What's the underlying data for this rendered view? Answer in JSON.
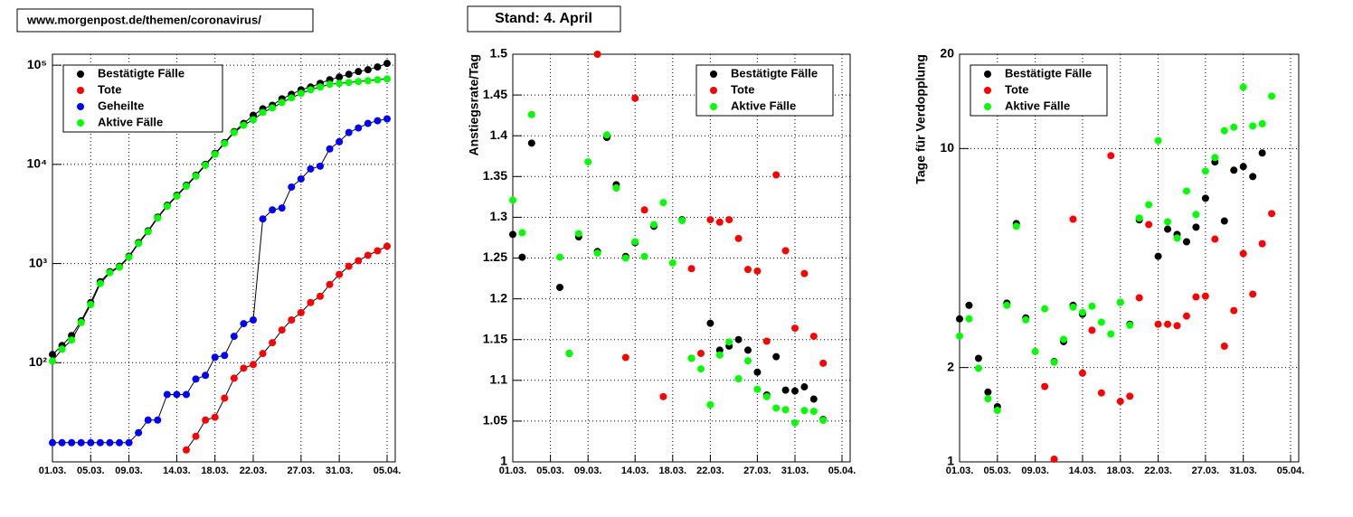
{
  "source": "www.morgenpost.de/themen/coronavirus/",
  "stand": "Stand: 4. April",
  "chart_data": [
    {
      "type": "line",
      "line_color": "#000000",
      "log_y": true,
      "grid": true,
      "legend": "top-left",
      "x": [
        "01.03.",
        "02.03.",
        "03.03.",
        "04.03.",
        "05.03.",
        "06.03.",
        "07.03.",
        "08.03.",
        "09.03.",
        "10.03.",
        "11.03.",
        "12.03.",
        "13.03.",
        "14.03.",
        "15.03.",
        "16.03.",
        "17.03.",
        "18.03.",
        "19.03.",
        "20.03.",
        "21.03.",
        "22.03.",
        "23.03.",
        "24.03.",
        "25.03.",
        "26.03.",
        "27.03.",
        "28.03.",
        "29.03.",
        "30.03.",
        "31.03.",
        "01.04.",
        "02.04.",
        "03.04.",
        "04.04.",
        "05.04."
      ],
      "xlim": [
        "01.03.",
        "05.04."
      ],
      "xticks": [
        "01.03.",
        "05.03.",
        "09.03.",
        "14.03.",
        "18.03.",
        "22.03.",
        "27.03.",
        "31.03.",
        "05.04."
      ],
      "ylim": [
        10,
        129000
      ],
      "yticks": [
        {
          "value": 100,
          "label": "10²"
        },
        {
          "value": 1000,
          "label": "10³"
        },
        {
          "value": 10000,
          "label": "10⁴"
        },
        {
          "value": 100000,
          "label": "10⁵"
        }
      ],
      "series": [
        {
          "name": "Bestätigte Fälle",
          "color": "#000000",
          "values": [
            121,
            149,
            188,
            264,
            404,
            656,
            826,
            938,
            1183,
            1626,
            2139,
            2937,
            3864,
            4875,
            6152,
            7762,
            10000,
            12880,
            16600,
            21380,
            25880,
            31270,
            36310,
            39450,
            45800,
            50820,
            56490,
            60260,
            65540,
            71290,
            76030,
            80910,
            86300,
            89950,
            95940,
            104200
          ]
        },
        {
          "name": "Tote",
          "color": "#ff0000",
          "values": [
            null,
            null,
            null,
            null,
            null,
            null,
            null,
            null,
            null,
            null,
            null,
            null,
            null,
            null,
            13.2,
            18.1,
            26.4,
            28.2,
            43.9,
            69.8,
            88.1,
            95.9,
            123.6,
            159.2,
            213.8,
            269.8,
            319.8,
            404,
            467.7,
            615.2,
            776.2,
            938,
            1067,
            1211,
            1343,
            1493
          ]
        },
        {
          "name": "Geheilte",
          "color": "#0000ff",
          "values": [
            15.6,
            15.6,
            15.6,
            15.6,
            15.6,
            15.6,
            15.6,
            15.6,
            15.6,
            19.7,
            26.4,
            26.4,
            47.8,
            47.8,
            47.8,
            68.4,
            74.5,
            113.5,
            118.3,
            184.5,
            247.7,
            269.8,
            2818,
            3475,
            3631,
            5902,
            7129,
            8995,
            9594,
            14320,
            16940,
            20940,
            23280,
            25880,
            27540,
            28770
          ]
        },
        {
          "name": "Aktive Fälle",
          "color": "#00ff00",
          "values": [
            104,
            137,
            169,
            254,
            386,
            628,
            809,
            919,
            1159,
            1592,
            2094,
            2877,
            3784,
            4775,
            6026,
            7603,
            9795,
            12618,
            16255,
            20940,
            24800,
            28180,
            33340,
            37060,
            42070,
            46770,
            51990,
            56490,
            60260,
            64120,
            65540,
            66980,
            68390,
            69840,
            71290,
            72800
          ]
        }
      ]
    },
    {
      "type": "scatter",
      "y_label": "Anstiegsrate/Tag",
      "log_y": false,
      "grid": true,
      "legend": "top-right",
      "x": [
        "01.03.",
        "02.03.",
        "03.03.",
        "04.03.",
        "05.03.",
        "06.03.",
        "07.03.",
        "08.03.",
        "09.03.",
        "10.03.",
        "11.03.",
        "12.03.",
        "13.03.",
        "14.03.",
        "15.03.",
        "16.03.",
        "17.03.",
        "18.03.",
        "19.03.",
        "20.03.",
        "21.03.",
        "22.03.",
        "23.03.",
        "24.03.",
        "25.03.",
        "26.03.",
        "27.03.",
        "28.03.",
        "29.03.",
        "30.03.",
        "31.03.",
        "01.04.",
        "02.04.",
        "03.04."
      ],
      "xlim": [
        "01.03.",
        "05.04."
      ],
      "xticks": [
        "01.03.",
        "05.03.",
        "09.03.",
        "14.03.",
        "18.03.",
        "22.03.",
        "27.03.",
        "31.03.",
        "05.04."
      ],
      "ylim": [
        1,
        1.5
      ],
      "yticks": [
        1,
        1.05,
        1.1,
        1.15,
        1.2,
        1.25,
        1.3,
        1.35,
        1.4,
        1.45,
        1.5
      ],
      "series": [
        {
          "name": "Bestätigte Fälle",
          "color": "#000000",
          "values": [
            1.279,
            1.251,
            1.391,
            null,
            null,
            1.214,
            1.133,
            1.276,
            null,
            1.258,
            1.398,
            1.34,
            1.252,
            1.269,
            null,
            1.289,
            null,
            null,
            1.297,
            1.127,
            null,
            1.17,
            1.137,
            1.142,
            1.15,
            1.137,
            1.11,
            1.082,
            1.129,
            1.088,
            1.087,
            1.092,
            1.077,
            1.052
          ]
        },
        {
          "name": "Tote",
          "color": "#ff0000",
          "values": [
            null,
            null,
            null,
            null,
            null,
            null,
            null,
            null,
            null,
            1.5,
            null,
            1.336,
            1.128,
            1.446,
            1.309,
            null,
            1.08,
            null,
            null,
            1.237,
            1.133,
            1.297,
            1.294,
            1.297,
            1.274,
            1.236,
            1.234,
            1.148,
            1.352,
            1.259,
            1.164,
            1.231,
            1.154,
            1.121
          ]
        },
        {
          "name": "Aktive Fälle",
          "color": "#00ff00",
          "values": [
            1.321,
            1.281,
            1.426,
            null,
            null,
            1.251,
            1.133,
            1.28,
            1.368,
            1.256,
            1.401,
            1.336,
            1.25,
            1.27,
            1.252,
            1.291,
            1.318,
            1.244,
            1.296,
            1.127,
            1.114,
            1.07,
            1.131,
            1.147,
            1.102,
            1.124,
            1.089,
            1.08,
            1.066,
            1.064,
            1.048,
            1.063,
            1.062,
            1.051
          ]
        }
      ]
    },
    {
      "type": "scatter",
      "y_label": "Tage für Verdopplung",
      "log_y": true,
      "grid": true,
      "legend": "top-left",
      "x": [
        "01.03.",
        "02.03.",
        "03.03.",
        "04.03.",
        "05.03.",
        "06.03.",
        "07.03.",
        "08.03.",
        "09.03.",
        "10.03.",
        "11.03.",
        "12.03.",
        "13.03.",
        "14.03.",
        "15.03.",
        "16.03.",
        "17.03.",
        "18.03.",
        "19.03.",
        "20.03.",
        "21.03.",
        "22.03.",
        "23.03.",
        "24.03.",
        "25.03.",
        "26.03.",
        "27.03.",
        "28.03.",
        "29.03.",
        "30.03.",
        "31.03.",
        "01.04.",
        "02.04.",
        "03.04."
      ],
      "xlim": [
        "01.03.",
        "05.04."
      ],
      "xticks": [
        "01.03.",
        "05.03.",
        "09.03.",
        "14.03.",
        "18.03.",
        "22.03.",
        "27.03.",
        "31.03.",
        "05.04."
      ],
      "ylim": [
        1,
        20
      ],
      "yticks": [
        1,
        2,
        10,
        20
      ],
      "series": [
        {
          "name": "Bestätigte Fälle",
          "color": "#000000",
          "values": [
            2.86,
            3.16,
            2.14,
            1.67,
            1.5,
            3.21,
            5.76,
            2.88,
            null,
            null,
            2.09,
            2.42,
            3.16,
            2.96,
            null,
            null,
            null,
            3.23,
            2.75,
            5.92,
            null,
            4.53,
            5.53,
            5.32,
            5.04,
            5.61,
            6.94,
            9.06,
            5.87,
            8.53,
            8.76,
            8.14,
            9.68,
            null
          ]
        },
        {
          "name": "Tote",
          "color": "#ff0000",
          "values": [
            null,
            null,
            null,
            null,
            null,
            null,
            null,
            null,
            null,
            1.74,
            1.02,
            null,
            5.95,
            1.92,
            2.63,
            1.66,
            9.49,
            1.56,
            1.62,
            3.34,
            5.72,
            2.75,
            2.75,
            2.72,
            2.92,
            3.36,
            3.38,
            5.14,
            2.34,
            3.04,
            4.62,
            3.43,
            4.97,
            6.2
          ]
        },
        {
          "name": "Aktive Fälle",
          "color": "#00ff00",
          "values": [
            2.52,
            2.86,
            1.99,
            1.59,
            1.46,
            3.16,
            5.65,
            2.84,
            2.25,
            3.08,
            2.08,
            2.46,
            3.12,
            3.0,
            3.14,
            2.79,
            2.56,
            3.23,
            2.73,
            6.0,
            6.62,
            10.6,
            5.84,
            5.18,
            7.32,
            6.16,
            8.47,
            9.36,
            11.4,
            11.7,
            15.7,
            11.8,
            12.0,
            14.7
          ]
        }
      ]
    }
  ]
}
